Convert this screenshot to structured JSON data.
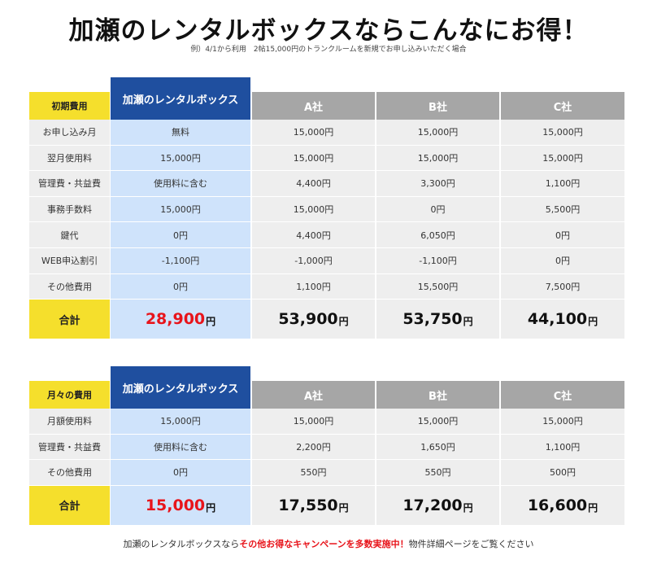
{
  "headline": "加瀬のレンタルボックスならこんなにお得！",
  "subline": "例）4/1から利用　2帖15,000円のトランクルームを新規でお申し込みいただく場合",
  "yen": "円",
  "tables": [
    {
      "section_label": "初期費用",
      "featured_label": "加瀬のレンタルボックス",
      "companies": [
        "A社",
        "B社",
        "C社"
      ],
      "rows": [
        {
          "label": "お申し込み月",
          "values": [
            "無料",
            "15,000円",
            "15,000円",
            "15,000円"
          ]
        },
        {
          "label": "翌月使用料",
          "values": [
            "15,000円",
            "15,000円",
            "15,000円",
            "15,000円"
          ]
        },
        {
          "label": "管理費・共益費",
          "values": [
            "使用料に含む",
            "4,400円",
            "3,300円",
            "1,100円"
          ]
        },
        {
          "label": "事務手数料",
          "values": [
            "15,000円",
            "15,000円",
            "0円",
            "5,500円"
          ]
        },
        {
          "label": "鍵代",
          "values": [
            "0円",
            "4,400円",
            "6,050円",
            "0円"
          ]
        },
        {
          "label": "WEB申込割引",
          "values": [
            "-1,100円",
            "-1,000円",
            "-1,100円",
            "0円"
          ]
        },
        {
          "label": "その他費用",
          "values": [
            "0円",
            "1,100円",
            "15,500円",
            "7,500円"
          ]
        }
      ],
      "total_label": "合計",
      "totals": [
        "28,900",
        "53,900",
        "53,750",
        "44,100"
      ]
    },
    {
      "section_label": "月々の費用",
      "featured_label": "加瀬のレンタルボックス",
      "companies": [
        "A社",
        "B社",
        "C社"
      ],
      "rows": [
        {
          "label": "月額使用料",
          "values": [
            "15,000円",
            "15,000円",
            "15,000円",
            "15,000円"
          ]
        },
        {
          "label": "管理費・共益費",
          "values": [
            "使用料に含む",
            "2,200円",
            "1,650円",
            "1,100円"
          ]
        },
        {
          "label": "その他費用",
          "values": [
            "0円",
            "550円",
            "550円",
            "500円"
          ]
        }
      ],
      "total_label": "合計",
      "totals": [
        "15,000",
        "17,550",
        "17,200",
        "16,600"
      ]
    }
  ],
  "footer": {
    "prefix": "加瀬のレンタルボックスなら",
    "highlight": "その他お得なキャンペーンを多数実施中！",
    "suffix": "物件詳細ページをご覧ください"
  },
  "colors": {
    "featured_header": "#1f4f9f",
    "featured_column": "#cfe3fb",
    "section_yellow": "#f5df2c",
    "company_header": "#a6a6a6",
    "cell_gray": "#eeeeee",
    "highlight_red": "#e8141b"
  }
}
